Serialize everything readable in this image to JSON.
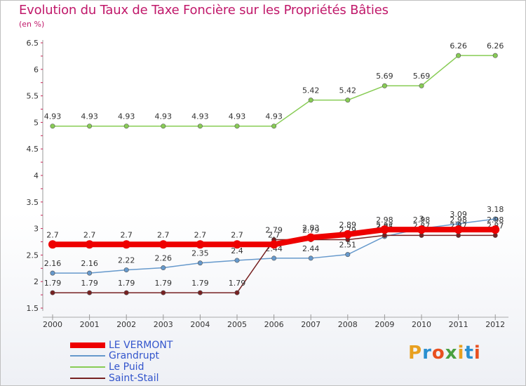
{
  "chart_data": {
    "type": "line",
    "title": "Evolution du Taux de Taxe Foncière sur les Propriétés Bâties",
    "ylabel": "(en %)",
    "xlabel": "",
    "ylim": [
      1.5,
      6.5
    ],
    "yticks": [
      "1.5",
      "2",
      "2.5",
      "3",
      "3.5",
      "4",
      "4.5",
      "5",
      "5.5",
      "6",
      "6.5"
    ],
    "categories": [
      "2000",
      "2001",
      "2002",
      "2003",
      "2004",
      "2005",
      "2006",
      "2007",
      "2008",
      "2009",
      "2010",
      "2011",
      "2012"
    ],
    "series": [
      {
        "name": "LE VERMONT",
        "color": "#ee0000",
        "values": [
          2.7,
          2.7,
          2.7,
          2.7,
          2.7,
          2.7,
          2.7,
          2.83,
          2.89,
          2.98,
          2.98,
          2.98,
          2.98
        ],
        "labels": [
          "2.7",
          "2.7",
          "2.7",
          "2.7",
          "2.7",
          "2.7",
          "2.7",
          "2.83",
          "2.89",
          "2.98",
          "2.98",
          "2.98",
          "2.98"
        ]
      },
      {
        "name": "Grandrupt",
        "color": "#6699cc",
        "values": [
          2.16,
          2.16,
          2.22,
          2.26,
          2.35,
          2.4,
          2.44,
          2.44,
          2.51,
          2.85,
          3.0,
          3.09,
          3.18
        ],
        "labels": [
          "2.16",
          "2.16",
          "2.22",
          "2.26",
          "2.35",
          "2.4",
          "2.44",
          "2.44",
          "2.51",
          "2.85",
          "3",
          "3.09",
          "3.18"
        ]
      },
      {
        "name": "Le Puid",
        "color": "#88cc55",
        "values": [
          4.93,
          4.93,
          4.93,
          4.93,
          4.93,
          4.93,
          4.93,
          5.42,
          5.42,
          5.69,
          5.69,
          6.26,
          6.26
        ],
        "labels": [
          "4.93",
          "4.93",
          "4.93",
          "4.93",
          "4.93",
          "4.93",
          "4.93",
          "5.42",
          "5.42",
          "5.69",
          "5.69",
          "6.26",
          "6.26"
        ]
      },
      {
        "name": "Saint-Stail",
        "color": "#772222",
        "values": [
          1.79,
          1.79,
          1.79,
          1.79,
          1.79,
          1.79,
          2.79,
          2.79,
          2.79,
          2.87,
          2.87,
          2.87,
          2.87
        ],
        "labels": [
          "1.79",
          "1.79",
          "1.79",
          "1.79",
          "1.79",
          "1.79",
          "2.79",
          "2.79",
          "2.79",
          "2.87",
          "2.87",
          "2.87",
          "2.87"
        ]
      }
    ]
  },
  "brand": {
    "letters": [
      "P",
      "r",
      "o",
      "x",
      "i",
      "t",
      "i"
    ]
  }
}
